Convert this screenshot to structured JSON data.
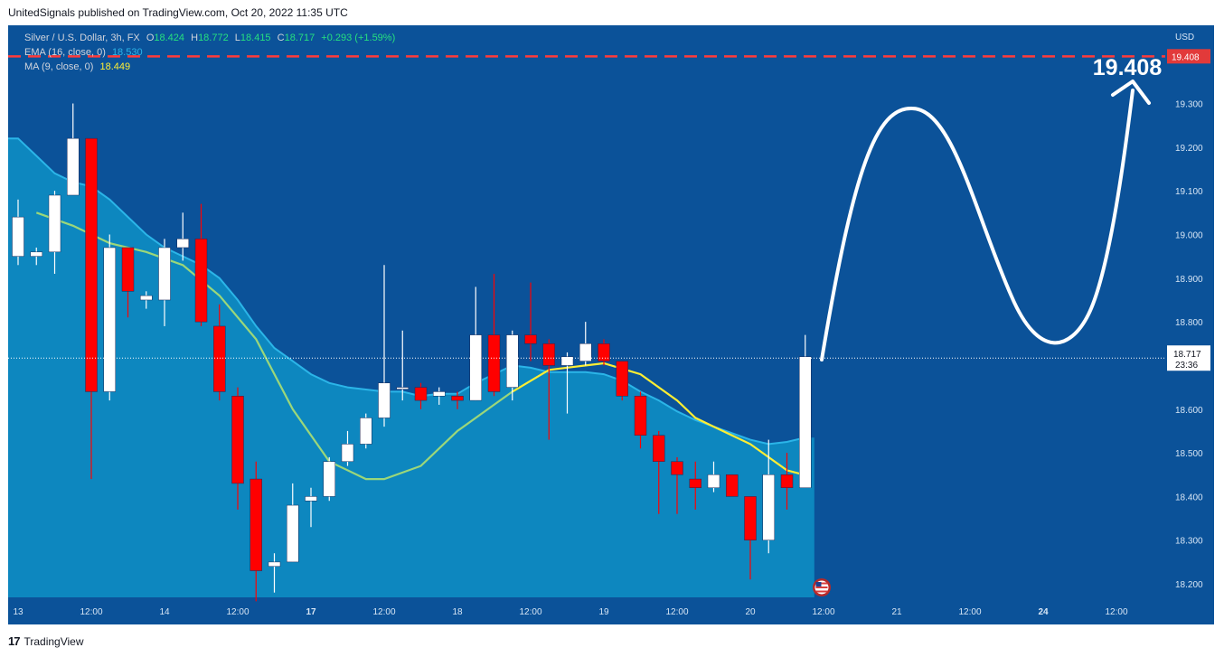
{
  "header": {
    "published_by": "UnitedSignals published on TradingView.com, Oct 20, 2022 11:35 UTC"
  },
  "legend": {
    "symbol": "Silver / U.S. Dollar, 3h, FX",
    "ohlc": {
      "o_label": "O",
      "o": "18.424",
      "h_label": "H",
      "h": "18.772",
      "l_label": "L",
      "l": "18.415",
      "c_label": "C",
      "c": "18.717",
      "chg": "+0.293 (+1.59%)"
    },
    "ema_label": "EMA (16, close, 0)",
    "ema_value": "18.530",
    "ma_label": "MA (9, close, 0)",
    "ma_value": "18.449"
  },
  "footer": {
    "brand": "TradingView",
    "logo_text": "17"
  },
  "colors": {
    "background": "#0b5299",
    "area": "#0d87bf",
    "up": "#ffffff",
    "down": "#ff0000",
    "ema": "#2bb5e8",
    "ma_past": "#9bd77a",
    "ma_recent": "#ffee33",
    "target": "#ff3b3b",
    "axis_text": "#d8e6f5"
  },
  "chart_data": {
    "type": "candlestick",
    "currency_label": "USD",
    "ylim": [
      18.15,
      19.46
    ],
    "y_ticks": [
      "18.200",
      "18.300",
      "18.400",
      "18.500",
      "18.600",
      "18.800",
      "18.900",
      "19.000",
      "19.100",
      "19.200",
      "19.300"
    ],
    "x_labels": [
      "13",
      "12:00",
      "14",
      "12:00",
      "17",
      "12:00",
      "18",
      "12:00",
      "19",
      "12:00",
      "20",
      "12:00",
      "21",
      "12:00",
      "24",
      "12:00"
    ],
    "x_label_index": [
      0,
      4,
      8,
      12,
      16,
      20,
      24,
      28,
      32,
      36,
      40,
      44,
      48,
      52,
      56,
      60
    ],
    "bold_x_labels": [
      "17",
      "24"
    ],
    "current_price": "18.717",
    "countdown": "23:36",
    "target_price": "19.408",
    "candles": [
      {
        "o": 18.95,
        "h": 19.08,
        "l": 18.93,
        "c": 19.04
      },
      {
        "o": 18.95,
        "h": 18.97,
        "l": 18.93,
        "c": 18.96
      },
      {
        "o": 18.96,
        "h": 19.1,
        "l": 18.91,
        "c": 19.09
      },
      {
        "o": 19.09,
        "h": 19.3,
        "l": 19.09,
        "c": 19.22
      },
      {
        "o": 19.22,
        "h": 19.22,
        "l": 18.44,
        "c": 18.64
      },
      {
        "o": 18.64,
        "h": 19.0,
        "l": 18.62,
        "c": 18.97
      },
      {
        "o": 18.97,
        "h": 18.97,
        "l": 18.81,
        "c": 18.87
      },
      {
        "o": 18.85,
        "h": 18.87,
        "l": 18.83,
        "c": 18.86
      },
      {
        "o": 18.85,
        "h": 18.99,
        "l": 18.79,
        "c": 18.97
      },
      {
        "o": 18.97,
        "h": 19.05,
        "l": 18.94,
        "c": 18.99
      },
      {
        "o": 18.99,
        "h": 19.07,
        "l": 18.79,
        "c": 18.8
      },
      {
        "o": 18.79,
        "h": 18.84,
        "l": 18.62,
        "c": 18.64
      },
      {
        "o": 18.63,
        "h": 18.65,
        "l": 18.37,
        "c": 18.43
      },
      {
        "o": 18.44,
        "h": 18.48,
        "l": 18.16,
        "c": 18.23
      },
      {
        "o": 18.24,
        "h": 18.27,
        "l": 18.18,
        "c": 18.25
      },
      {
        "o": 18.25,
        "h": 18.43,
        "l": 18.25,
        "c": 18.38
      },
      {
        "o": 18.39,
        "h": 18.42,
        "l": 18.33,
        "c": 18.4
      },
      {
        "o": 18.4,
        "h": 18.49,
        "l": 18.39,
        "c": 18.48
      },
      {
        "o": 18.48,
        "h": 18.55,
        "l": 18.47,
        "c": 18.52
      },
      {
        "o": 18.52,
        "h": 18.59,
        "l": 18.51,
        "c": 18.58
      },
      {
        "o": 18.58,
        "h": 18.93,
        "l": 18.56,
        "c": 18.66
      },
      {
        "o": 18.65,
        "h": 18.78,
        "l": 18.62,
        "c": 18.65
      },
      {
        "o": 18.65,
        "h": 18.66,
        "l": 18.6,
        "c": 18.62
      },
      {
        "o": 18.63,
        "h": 18.65,
        "l": 18.61,
        "c": 18.64
      },
      {
        "o": 18.63,
        "h": 18.64,
        "l": 18.6,
        "c": 18.62
      },
      {
        "o": 18.62,
        "h": 18.88,
        "l": 18.62,
        "c": 18.77
      },
      {
        "o": 18.77,
        "h": 18.91,
        "l": 18.63,
        "c": 18.64
      },
      {
        "o": 18.65,
        "h": 18.78,
        "l": 18.62,
        "c": 18.77
      },
      {
        "o": 18.77,
        "h": 18.89,
        "l": 18.71,
        "c": 18.75
      },
      {
        "o": 18.75,
        "h": 18.76,
        "l": 18.53,
        "c": 18.7
      },
      {
        "o": 18.7,
        "h": 18.73,
        "l": 18.59,
        "c": 18.72
      },
      {
        "o": 18.71,
        "h": 18.8,
        "l": 18.7,
        "c": 18.75
      },
      {
        "o": 18.75,
        "h": 18.76,
        "l": 18.7,
        "c": 18.71
      },
      {
        "o": 18.71,
        "h": 18.71,
        "l": 18.62,
        "c": 18.63
      },
      {
        "o": 18.63,
        "h": 18.64,
        "l": 18.51,
        "c": 18.54
      },
      {
        "o": 18.54,
        "h": 18.55,
        "l": 18.36,
        "c": 18.48
      },
      {
        "o": 18.48,
        "h": 18.49,
        "l": 18.36,
        "c": 18.45
      },
      {
        "o": 18.44,
        "h": 18.48,
        "l": 18.37,
        "c": 18.42
      },
      {
        "o": 18.42,
        "h": 18.48,
        "l": 18.41,
        "c": 18.45
      },
      {
        "o": 18.45,
        "h": 18.45,
        "l": 18.4,
        "c": 18.4
      },
      {
        "o": 18.4,
        "h": 18.4,
        "l": 18.21,
        "c": 18.3
      },
      {
        "o": 18.3,
        "h": 18.53,
        "l": 18.27,
        "c": 18.45
      },
      {
        "o": 18.45,
        "h": 18.5,
        "l": 18.37,
        "c": 18.42
      },
      {
        "o": 18.42,
        "h": 18.77,
        "l": 18.42,
        "c": 18.72
      }
    ],
    "ema": [
      19.22,
      19.18,
      19.14,
      19.12,
      19.11,
      19.08,
      19.04,
      19.0,
      18.97,
      18.95,
      18.93,
      18.9,
      18.85,
      18.79,
      18.74,
      18.71,
      18.68,
      18.66,
      18.65,
      18.645,
      18.64,
      18.64,
      18.63,
      18.635,
      18.635,
      18.66,
      18.68,
      18.7,
      18.695,
      18.685,
      18.685,
      18.685,
      18.68,
      18.665,
      18.64,
      18.62,
      18.595,
      18.575,
      18.56,
      18.545,
      18.53,
      18.52,
      18.525,
      18.535
    ],
    "ma_past": [
      [
        1,
        19.05
      ],
      [
        3,
        19.02
      ],
      [
        5,
        18.98
      ],
      [
        7,
        18.96
      ],
      [
        9,
        18.93
      ],
      [
        11,
        18.86
      ],
      [
        13,
        18.76
      ],
      [
        15,
        18.6
      ],
      [
        17,
        18.48
      ],
      [
        19,
        18.44
      ],
      [
        20,
        18.44
      ],
      [
        22,
        18.47
      ],
      [
        24,
        18.55
      ],
      [
        26,
        18.61
      ],
      [
        27,
        18.64
      ]
    ],
    "ma_recent": [
      [
        27,
        18.64
      ],
      [
        29,
        18.69
      ],
      [
        31,
        18.7
      ],
      [
        32,
        18.705
      ],
      [
        34,
        18.68
      ],
      [
        36,
        18.62
      ],
      [
        37,
        18.58
      ],
      [
        38,
        18.56
      ],
      [
        40,
        18.52
      ],
      [
        42,
        18.46
      ],
      [
        43,
        18.449
      ]
    ]
  }
}
